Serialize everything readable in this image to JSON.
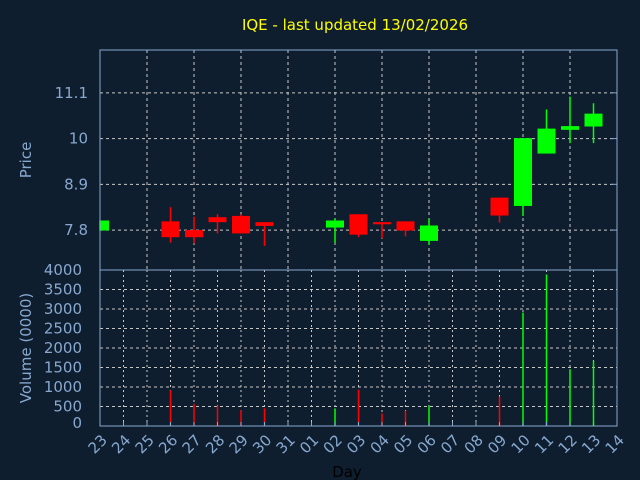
{
  "chart_data": {
    "type": "candlestick",
    "title": "IQE - last updated 13/02/2026",
    "xlabel": "Day",
    "ylabel": "Price",
    "volume_ylabel": "Volume (0000)",
    "x_ticks": [
      "23",
      "24",
      "25",
      "26",
      "27",
      "28",
      "29",
      "30",
      "31",
      "01",
      "02",
      "03",
      "04",
      "05",
      "06",
      "07",
      "08",
      "09",
      "10",
      "11",
      "12",
      "13",
      "14"
    ],
    "y_ticks": [
      7.8,
      8.9,
      10,
      11.1
    ],
    "y_tick_labels": [
      "7.8",
      "8.9",
      "10",
      "11.1"
    ],
    "ylim": [
      6.84,
      12.13
    ],
    "volume_ticks": [
      0,
      500,
      1000,
      1500,
      2000,
      2500,
      3000,
      3500,
      4000
    ],
    "volume_tick_labels": [
      "0",
      "500",
      "1000",
      "1500",
      "2000",
      "2500",
      "3000",
      "3500",
      "4000"
    ],
    "volume_ylim": [
      0,
      4000
    ],
    "grid": true,
    "colors": {
      "up": "#00ff00",
      "down": "#ff0000",
      "background": "#0f1e2f",
      "axis": "#87a8cf",
      "title": "#ffff00"
    },
    "candles": [
      {
        "day": "23",
        "open": 7.79,
        "high": 8.03,
        "low": 7.79,
        "close": 8.03,
        "volume": 0
      },
      {
        "day": "26",
        "open": 8.01,
        "high": 8.35,
        "low": 7.5,
        "close": 7.63,
        "volume": 916
      },
      {
        "day": "27",
        "open": 7.8,
        "high": 8.12,
        "low": 7.48,
        "close": 7.63,
        "volume": 567
      },
      {
        "day": "28",
        "open": 8.11,
        "high": 8.18,
        "low": 7.72,
        "close": 7.99,
        "volume": 524
      },
      {
        "day": "29",
        "open": 8.14,
        "high": 8.18,
        "low": 7.72,
        "close": 7.72,
        "volume": 407
      },
      {
        "day": "30",
        "open": 7.99,
        "high": 7.99,
        "low": 7.42,
        "close": 7.9,
        "volume": 451
      },
      {
        "day": "02",
        "open": 7.86,
        "high": 8.08,
        "low": 7.49,
        "close": 8.03,
        "volume": 451
      },
      {
        "day": "03",
        "open": 8.18,
        "high": 8.18,
        "low": 7.63,
        "close": 7.69,
        "volume": 931
      },
      {
        "day": "04",
        "open": 7.99,
        "high": 7.99,
        "low": 7.6,
        "close": 7.94,
        "volume": 320
      },
      {
        "day": "05",
        "open": 8.01,
        "high": 8.01,
        "low": 7.65,
        "close": 7.79,
        "volume": 393
      },
      {
        "day": "06",
        "open": 7.54,
        "high": 8.08,
        "low": 7.45,
        "close": 7.91,
        "volume": 524
      },
      {
        "day": "09",
        "open": 8.58,
        "high": 8.58,
        "low": 7.98,
        "close": 8.15,
        "volume": 756
      },
      {
        "day": "10",
        "open": 8.38,
        "high": 10.01,
        "low": 8.14,
        "close": 10.01,
        "volume": 2909
      },
      {
        "day": "11",
        "open": 9.64,
        "high": 10.7,
        "low": 9.64,
        "close": 10.24,
        "volume": 3884
      },
      {
        "day": "12",
        "open": 10.21,
        "high": 11.01,
        "low": 9.89,
        "close": 10.3,
        "volume": 1455
      },
      {
        "day": "13",
        "open": 10.29,
        "high": 10.85,
        "low": 9.89,
        "close": 10.6,
        "volume": 1673
      }
    ]
  }
}
